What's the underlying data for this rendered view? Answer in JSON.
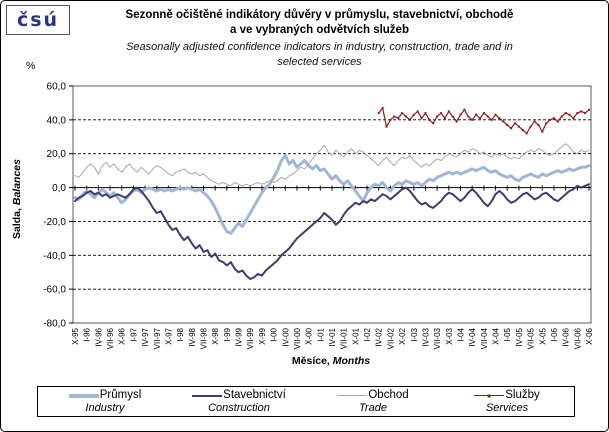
{
  "logo": {
    "text": "čsú",
    "color": "#283583"
  },
  "title": {
    "line1": "Sezonně očištěné indikátory důvěry v průmyslu, stavebnictví, obchodě",
    "line2": "a ve vybraných odvětvích služeb"
  },
  "subtitle": {
    "line1": "Seasonally adjusted confidence indicators in industry, construction, trade and in",
    "line2": "selected services"
  },
  "percent_label": "%",
  "y_axis": {
    "title_cz": "Salda,",
    "title_en": "Balances"
  },
  "x_axis": {
    "title_cz": "Měsíce,",
    "title_en": "Months"
  },
  "legend": {
    "items": [
      {
        "id": "industry",
        "label_cz": "Průmysl",
        "label_en": "Industry",
        "color": "#9FB6D4",
        "width": 4,
        "marker": false
      },
      {
        "id": "construction",
        "label_cz": "Stavebnictví",
        "label_en": "Construction",
        "color": "#3B3E6E",
        "width": 2,
        "marker": false
      },
      {
        "id": "trade",
        "label_cz": "Obchod",
        "label_en": "Trade",
        "color": "#A8A8A8",
        "width": 1,
        "marker": false
      },
      {
        "id": "services",
        "label_cz": "Služby",
        "label_en": "Services",
        "color": "#8F1D1D",
        "width": 1,
        "marker": true
      }
    ]
  },
  "chart_data": {
    "type": "line",
    "title": "Sezonně očištěné indikátory důvěry v průmyslu, stavebnictví, obchodě a ve vybraných odvětvích služeb / Seasonally adjusted confidence indicators in industry, construction, trade and in selected services",
    "xlabel": "Měsíce, Months",
    "ylabel": "Salda, Balances",
    "frequency": "monthly",
    "n_points": 133,
    "x_start": "X-95",
    "x_end": "X-06",
    "x_tick_step": 3,
    "x_tick_labels": [
      "X-95",
      "I-96",
      "IV-96",
      "VII-96",
      "X-96",
      "I-97",
      "IV-97",
      "VII-97",
      "X-97",
      "I-98",
      "IV-98",
      "VII-98",
      "X-98",
      "I-99",
      "IV-99",
      "VII-99",
      "X-99",
      "I-00",
      "IV-00",
      "VII-00",
      "X-00",
      "I-01",
      "IV-01",
      "VII-01",
      "X-01",
      "I-02",
      "IV-02",
      "VII-02",
      "X-02",
      "I-03",
      "IV-03",
      "VII-03",
      "X-03",
      "I-04",
      "IV-04",
      "VII-04",
      "X-04",
      "I-05",
      "IV-05",
      "VII-05",
      "X-05",
      "I-06",
      "IV-06",
      "VII-06",
      "X-06"
    ],
    "ylim": [
      -80,
      60
    ],
    "y_step": 20,
    "y_tick_labels": [
      "60,0",
      "40,0",
      "20,0",
      "0,0",
      "-20,0",
      "-40,0",
      "-60,0",
      "-80,0"
    ],
    "grid": "horizontal-dashed",
    "legend_position": "bottom",
    "series": [
      {
        "id": "industry",
        "name_cz": "Průmysl",
        "name_en": "Industry",
        "color": "#9FB6D4",
        "width": 3,
        "marker": false,
        "start_index": 0,
        "values": [
          -6,
          -7,
          -4,
          -2,
          -4,
          -6,
          -3,
          -1,
          -3,
          -5,
          -3,
          -6,
          -9,
          -7,
          -4,
          -2,
          -1,
          -3,
          -1,
          0,
          -1,
          -2,
          -1,
          -2,
          -1,
          -2,
          -1,
          0,
          -1,
          0,
          -1,
          -2,
          -1,
          -3,
          -5,
          -8,
          -12,
          -17,
          -22,
          -26,
          -27,
          -24,
          -21,
          -23,
          -19,
          -15,
          -11,
          -7,
          -3,
          0,
          2,
          6,
          10,
          16,
          19,
          14,
          16,
          12,
          14,
          16,
          13,
          11,
          13,
          10,
          11,
          8,
          5,
          7,
          4,
          2,
          4,
          1,
          -2,
          -5,
          -8,
          -3,
          0,
          2,
          1,
          3,
          0,
          -2,
          1,
          3,
          2,
          4,
          3,
          2,
          3,
          1,
          3,
          5,
          4,
          6,
          7,
          8,
          9,
          8,
          9,
          8,
          9,
          10,
          11,
          10,
          11,
          12,
          10,
          9,
          10,
          8,
          7,
          6,
          7,
          5,
          4,
          6,
          7,
          8,
          7,
          6,
          8,
          7,
          8,
          9,
          10,
          9,
          10,
          11,
          10,
          11,
          12,
          12,
          13
        ]
      },
      {
        "id": "construction",
        "name_cz": "Stavebnictví",
        "name_en": "Construction",
        "color": "#3B3E6E",
        "width": 2,
        "marker": false,
        "start_index": 0,
        "values": [
          -8,
          -6,
          -5,
          -3,
          -2,
          -4,
          -3,
          -5,
          -4,
          -6,
          -5,
          -4,
          -5,
          -6,
          -4,
          -1,
          0,
          -2,
          -5,
          -8,
          -12,
          -15,
          -14,
          -18,
          -22,
          -25,
          -24,
          -28,
          -31,
          -29,
          -33,
          -36,
          -34,
          -38,
          -37,
          -41,
          -39,
          -43,
          -44,
          -46,
          -44,
          -48,
          -50,
          -49,
          -52,
          -54,
          -53,
          -51,
          -52,
          -49,
          -47,
          -45,
          -43,
          -40,
          -38,
          -36,
          -33,
          -30,
          -28,
          -26,
          -24,
          -22,
          -20,
          -18,
          -15,
          -17,
          -19,
          -22,
          -20,
          -16,
          -13,
          -11,
          -9,
          -10,
          -8,
          -9,
          -7,
          -8,
          -6,
          -4,
          -5,
          -7,
          -5,
          -3,
          -1,
          0,
          -2,
          -5,
          -8,
          -10,
          -9,
          -11,
          -12,
          -10,
          -8,
          -5,
          -3,
          -4,
          -6,
          -8,
          -6,
          -3,
          -1,
          -3,
          -6,
          -9,
          -11,
          -8,
          -4,
          -2,
          -4,
          -7,
          -9,
          -8,
          -6,
          -4,
          -3,
          -5,
          -7,
          -6,
          -4,
          -3,
          -5,
          -7,
          -8,
          -6,
          -4,
          -2,
          -1,
          1,
          0,
          1,
          2
        ]
      },
      {
        "id": "trade",
        "name_cz": "Obchod",
        "name_en": "Trade",
        "color": "#A8A8A8",
        "width": 1,
        "marker": false,
        "start_index": 0,
        "values": [
          7,
          6,
          9,
          12,
          14,
          12,
          8,
          13,
          15,
          12,
          14,
          11,
          9,
          12,
          14,
          11,
          9,
          12,
          10,
          8,
          11,
          13,
          12,
          10,
          8,
          7,
          9,
          10,
          11,
          9,
          8,
          9,
          7,
          8,
          6,
          4,
          3,
          2,
          3,
          2,
          1,
          3,
          2,
          1,
          2,
          1,
          2,
          3,
          2,
          3,
          4,
          3,
          4,
          6,
          5,
          7,
          8,
          10,
          12,
          11,
          14,
          17,
          20,
          22,
          25,
          21,
          19,
          22,
          20,
          18,
          21,
          23,
          20,
          22,
          21,
          19,
          17,
          15,
          13,
          16,
          18,
          15,
          13,
          16,
          18,
          17,
          19,
          16,
          14,
          12,
          14,
          13,
          15,
          17,
          16,
          18,
          20,
          19,
          18,
          20,
          22,
          21,
          23,
          22,
          20,
          21,
          19,
          18,
          20,
          19,
          20,
          18,
          17,
          18,
          17,
          19,
          21,
          22,
          21,
          23,
          22,
          20,
          19,
          20,
          22,
          24,
          26,
          24,
          21,
          20,
          22,
          21,
          22
        ]
      },
      {
        "id": "services",
        "name_cz": "Služby",
        "name_en": "Services",
        "color": "#8F1D1D",
        "width": 1.2,
        "marker": true,
        "start_index": 78,
        "values": [
          44,
          47,
          36,
          40,
          42,
          41,
          44,
          42,
          40,
          43,
          45,
          41,
          44,
          40,
          38,
          42,
          44,
          41,
          45,
          42,
          39,
          43,
          46,
          42,
          40,
          43,
          41,
          44,
          42,
          40,
          43,
          41,
          39,
          37,
          35,
          38,
          36,
          34,
          32,
          36,
          39,
          37,
          33,
          38,
          40,
          41,
          39,
          42,
          44,
          43,
          41,
          44,
          45,
          44,
          46
        ]
      }
    ]
  }
}
